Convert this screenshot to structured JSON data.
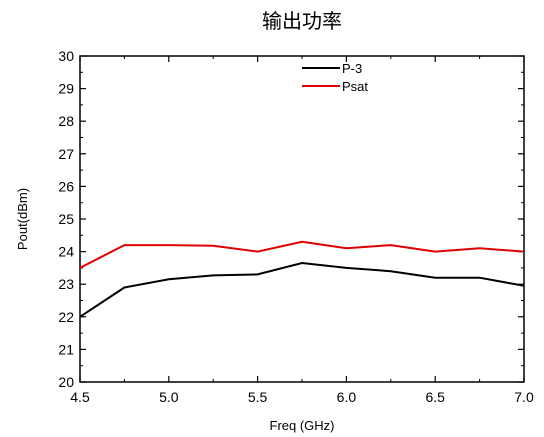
{
  "chart_data": {
    "type": "line",
    "title": "输出功率",
    "xlabel": "Freq (GHz)",
    "ylabel": "Pout(dBm)",
    "xlim": [
      4.5,
      7.0
    ],
    "ylim": [
      20,
      30
    ],
    "x_ticks": [
      "4.5",
      "5.0",
      "5.5",
      "6.0",
      "6.5",
      "7.0"
    ],
    "y_ticks": [
      "20",
      "21",
      "22",
      "23",
      "24",
      "25",
      "26",
      "27",
      "28",
      "29",
      "30"
    ],
    "grid": false,
    "legend_position": "top-center",
    "x": [
      4.5,
      4.75,
      5.0,
      5.25,
      5.5,
      5.75,
      6.0,
      6.25,
      6.5,
      6.75,
      7.0
    ],
    "series": [
      {
        "name": "P-3",
        "color": "#000000",
        "values": [
          22.0,
          22.9,
          23.15,
          23.27,
          23.3,
          23.65,
          23.5,
          23.4,
          23.2,
          23.2,
          22.95
        ]
      },
      {
        "name": "Psat",
        "color": "#e00000",
        "values": [
          23.5,
          24.2,
          24.2,
          24.18,
          24.0,
          24.3,
          24.1,
          24.2,
          24.0,
          24.1,
          24.0
        ]
      }
    ]
  }
}
